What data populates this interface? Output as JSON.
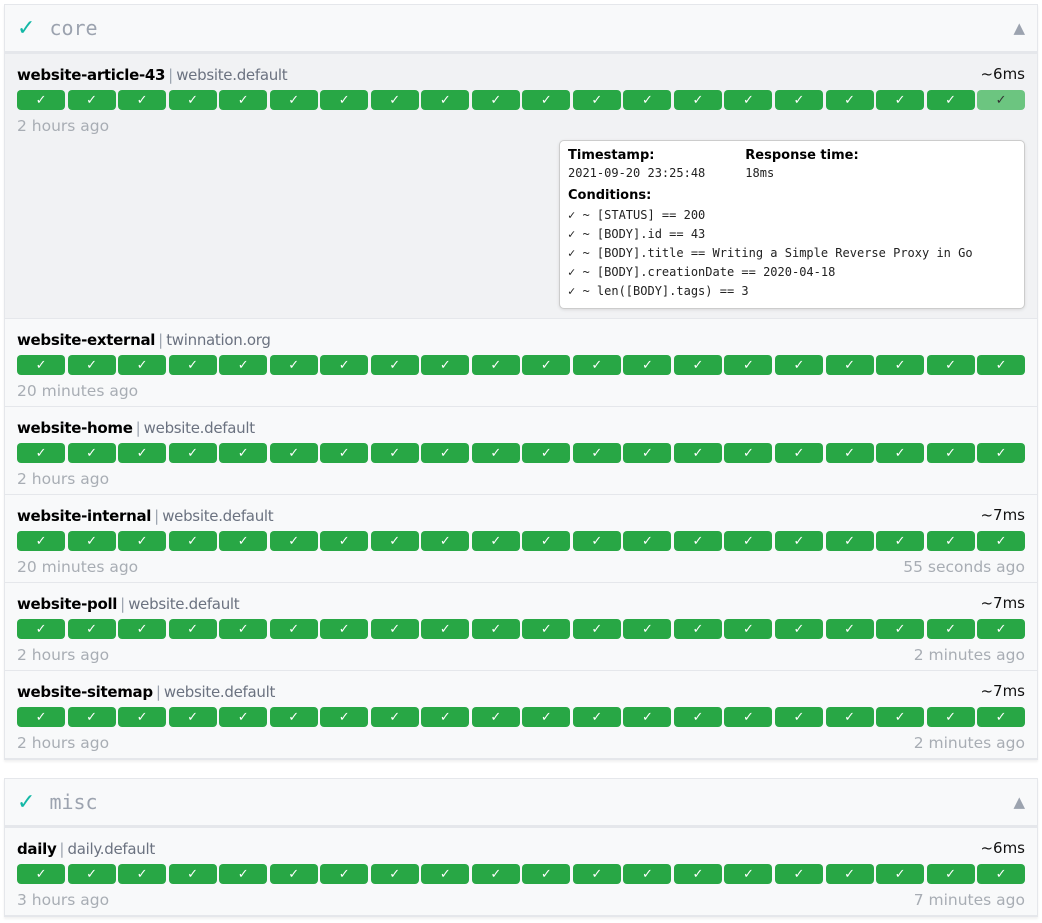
{
  "colors": {
    "success": "#28a745",
    "accent": "#14b8a6"
  },
  "groups": [
    {
      "name": "core",
      "check": "✓",
      "toggle": "▲",
      "endpoints": [
        {
          "name": "website-article-43",
          "host": "website.default",
          "response": "~6ms",
          "oldest": "2 hours ago",
          "newest": "",
          "hovered_bar": 19
        },
        {
          "name": "website-external",
          "host": "twinnation.org",
          "response": "",
          "oldest": "20 minutes ago",
          "newest": ""
        },
        {
          "name": "website-home",
          "host": "website.default",
          "response": "",
          "oldest": "2 hours ago",
          "newest": ""
        },
        {
          "name": "website-internal",
          "host": "website.default",
          "response": "~7ms",
          "oldest": "20 minutes ago",
          "newest": "55 seconds ago"
        },
        {
          "name": "website-poll",
          "host": "website.default",
          "response": "~7ms",
          "oldest": "2 hours ago",
          "newest": "2 minutes ago"
        },
        {
          "name": "website-sitemap",
          "host": "website.default",
          "response": "~7ms",
          "oldest": "2 hours ago",
          "newest": "2 minutes ago"
        }
      ]
    },
    {
      "name": "misc",
      "check": "✓",
      "toggle": "▲",
      "endpoints": [
        {
          "name": "daily",
          "host": "daily.default",
          "response": "~6ms",
          "oldest": "3 hours ago",
          "newest": "7 minutes ago"
        }
      ]
    }
  ],
  "results_per_endpoint": 20,
  "result_glyph": "✓",
  "tooltip": {
    "timestamp_label": "Timestamp:",
    "timestamp": "2021-09-20 23:25:48",
    "response_label": "Response time:",
    "response": "18ms",
    "conditions_label": "Conditions:",
    "conditions": [
      "✓ ~ [STATUS] == 200",
      "✓ ~ [BODY].id == 43",
      "✓ ~ [BODY].title == Writing a Simple Reverse Proxy in Go",
      "✓ ~ [BODY].creationDate == 2020-04-18",
      "✓ ~ len([BODY].tags) == 3"
    ]
  }
}
